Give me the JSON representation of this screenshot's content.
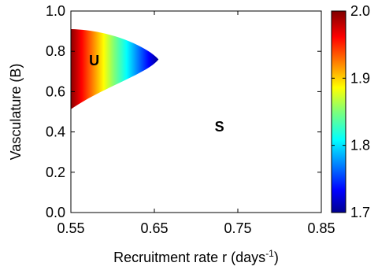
{
  "chart_data": {
    "type": "heatmap",
    "title": "",
    "xlabel": "Recruitment rate r (days",
    "xlabel_superscript": "-1",
    "xlabel_suffix": ")",
    "ylabel": "Vasculature (B)",
    "xlim": [
      0.55,
      0.85
    ],
    "ylim": [
      0.0,
      1.0
    ],
    "x_ticks": [
      0.55,
      0.65,
      0.75,
      0.85
    ],
    "x_tick_labels": [
      "0.55",
      "0.65",
      "0.75",
      "0.85"
    ],
    "y_ticks": [
      0.0,
      0.2,
      0.4,
      0.6,
      0.8,
      1.0
    ],
    "y_tick_labels": [
      "0.0",
      "0.2",
      "0.4",
      "0.6",
      "0.8",
      "1.0"
    ],
    "grid": false,
    "colormap": "jet",
    "colorbar": {
      "range": [
        1.7,
        2.0
      ],
      "ticks": [
        1.7,
        1.8,
        1.9,
        2.0
      ],
      "tick_labels": [
        "1.7",
        "1.8",
        "1.9",
        "2.0"
      ]
    },
    "unstable_region": {
      "label": "U",
      "label_at": [
        0.578,
        0.75
      ],
      "tip": [
        0.655,
        0.76
      ],
      "boundary_at_x_0_55": [
        0.51,
        0.91
      ],
      "color_low_edge": 1.7,
      "color_high_edge": 2.0
    },
    "stable_region": {
      "label": "S",
      "label_at": [
        0.728,
        0.42
      ]
    },
    "colors": {
      "background": "#ffffff",
      "axes": "#000000"
    }
  }
}
